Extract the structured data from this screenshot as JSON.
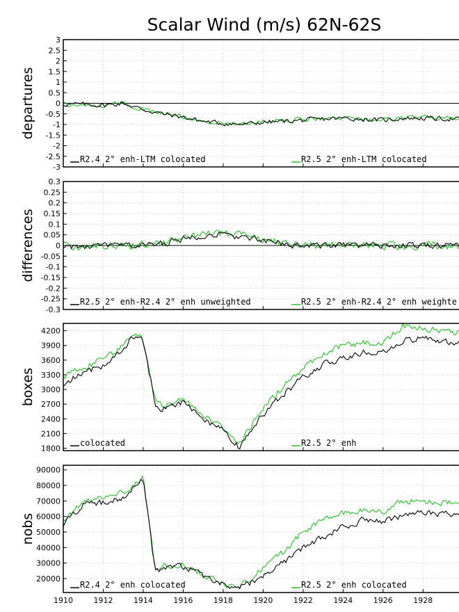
{
  "title": "Scalar Wind (m/s) 62N-62S",
  "colors": {
    "black_series": "#000000",
    "green_series": "#22c322",
    "grid": "#bdbdbd",
    "zero_line": "#000000"
  },
  "x_axis": {
    "start": 1910,
    "end": 1929.8,
    "ticks": [
      1910,
      1912,
      1914,
      1916,
      1918,
      1920,
      1922,
      1924,
      1926,
      1928
    ]
  },
  "chart_data": [
    {
      "type": "line",
      "ylabel": "departures",
      "ylim": [
        -3,
        3
      ],
      "yticks": [
        "3",
        "2.5",
        "2",
        "1.5",
        "1",
        "0.5",
        "0",
        "-0.5",
        "-1",
        "-1.5",
        "-2",
        "-2.5",
        "-3"
      ],
      "zero_line": true,
      "grid": true,
      "legend": [
        {
          "name": "R2.4 2° enh-LTM colocated",
          "color": "#000000",
          "position": "bottom-left"
        },
        {
          "name": "R2.5 2° enh-LTM colocated",
          "color": "#22c322",
          "position": "bottom-right"
        }
      ],
      "shape": {
        "x": [
          1910,
          1911,
          1912,
          1913,
          1914,
          1915,
          1916,
          1917,
          1918,
          1919,
          1920,
          1921,
          1922,
          1923,
          1924,
          1925,
          1926,
          1927,
          1928,
          1929.8
        ],
        "series": [
          {
            "name": "R2.4 2° enh-LTM colocated",
            "values": [
              -0.05,
              -0.05,
              -0.1,
              0.0,
              -0.3,
              -0.5,
              -0.65,
              -0.85,
              -0.95,
              -1.0,
              -0.9,
              -0.85,
              -0.8,
              -0.75,
              -0.7,
              -0.75,
              -0.8,
              -0.7,
              -0.7,
              -0.75
            ]
          },
          {
            "name": "R2.5 2° enh-LTM colocated",
            "values": [
              -0.05,
              -0.05,
              -0.1,
              0.0,
              -0.3,
              -0.5,
              -0.62,
              -0.82,
              -0.93,
              -0.98,
              -0.85,
              -0.8,
              -0.75,
              -0.7,
              -0.68,
              -0.72,
              -0.78,
              -0.68,
              -0.68,
              -0.72
            ]
          }
        ],
        "noise": [
          0.15,
          0.15
        ]
      }
    },
    {
      "type": "line",
      "ylabel": "differences",
      "ylim": [
        -0.3,
        0.3
      ],
      "yticks": [
        "0.3",
        "0.25",
        "0.2",
        "0.15",
        "0.1",
        "0.05",
        "0",
        "-0.05",
        "-0.1",
        "-0.15",
        "-0.2",
        "-0.25",
        "-0.3"
      ],
      "zero_line": true,
      "grid": true,
      "legend": [
        {
          "name": "R2.5 2° enh-R2.4 2° enh unweighted",
          "color": "#000000",
          "position": "bottom-left"
        },
        {
          "name": "R2.5 2° enh-R2.4 2° enh weighte",
          "color": "#22c322",
          "position": "bottom-right"
        }
      ],
      "shape": {
        "x": [
          1910,
          1911,
          1912,
          1913,
          1914,
          1915,
          1916,
          1917,
          1918,
          1919,
          1920,
          1921,
          1922,
          1923,
          1924,
          1925,
          1926,
          1927,
          1928,
          1929.8
        ],
        "series": [
          {
            "name": "R2.5 2° enh-R2.4 2° enh unweighted",
            "values": [
              0.0,
              -0.01,
              0.0,
              0.0,
              0.0,
              0.01,
              0.03,
              0.05,
              0.05,
              0.04,
              0.02,
              0.01,
              0.0,
              0.0,
              0.0,
              0.0,
              0.0,
              0.0,
              0.0,
              0.0
            ]
          },
          {
            "name": "R2.5 2° enh-R2.4 2° enh weighte",
            "values": [
              0.0,
              -0.01,
              0.0,
              0.0,
              0.0,
              0.01,
              0.035,
              0.055,
              0.055,
              0.045,
              0.025,
              0.01,
              0.0,
              0.0,
              0.0,
              0.0,
              0.0,
              0.0,
              0.0,
              0.0
            ]
          }
        ],
        "noise": [
          0.02,
          0.025
        ]
      }
    },
    {
      "type": "line",
      "ylabel": "boxes",
      "ylim": [
        1750,
        4350
      ],
      "yticks": [
        "4200",
        "3900",
        "3600",
        "3300",
        "3000",
        "2700",
        "2400",
        "2100",
        "1800"
      ],
      "ytick_values": [
        4200,
        3900,
        3600,
        3300,
        3000,
        2700,
        2400,
        2100,
        1800
      ],
      "zero_line": false,
      "grid": true,
      "legend": [
        {
          "name": "colocated",
          "color": "#000000",
          "position": "bottom-left"
        },
        {
          "name": "R2.5 2° enh",
          "color": "#22c322",
          "position": "bottom-right"
        }
      ],
      "shape": {
        "x": [
          1910,
          1911,
          1912,
          1913,
          1913.5,
          1914,
          1914.6,
          1915,
          1916,
          1917,
          1918,
          1918.8,
          1919.5,
          1920,
          1921,
          1922,
          1923,
          1924,
          1925,
          1926,
          1927,
          1928,
          1929.8
        ],
        "series": [
          {
            "name": "colocated",
            "values": [
              3100,
              3350,
              3500,
              3800,
              4100,
              4000,
              2700,
              2600,
              2750,
              2400,
              2150,
              1820,
              2200,
              2500,
              2900,
              3250,
              3500,
              3650,
              3750,
              3750,
              4000,
              4050,
              3950
            ]
          },
          {
            "name": "R2.5 2° enh",
            "values": [
              3250,
              3450,
              3600,
              3900,
              4150,
              4050,
              2750,
              2650,
              2800,
              2450,
              2200,
              1880,
              2300,
              2650,
              3050,
              3450,
              3750,
              3900,
              3950,
              3950,
              4300,
              4250,
              4150
            ]
          }
        ],
        "noise": [
          90,
          90
        ]
      }
    },
    {
      "type": "line",
      "ylabel": "nobs",
      "ylim": [
        11000,
        93000
      ],
      "yticks": [
        "90000",
        "80000",
        "70000",
        "60000",
        "50000",
        "40000",
        "30000",
        "20000"
      ],
      "ytick_values": [
        90000,
        80000,
        70000,
        60000,
        50000,
        40000,
        30000,
        20000
      ],
      "zero_line": false,
      "grid": true,
      "legend": [
        {
          "name": "R2.4 2° enh colocated",
          "color": "#000000",
          "position": "bottom-left"
        },
        {
          "name": "R2.5 2° enh colocated",
          "color": "#22c322",
          "position": "bottom-right"
        }
      ],
      "shape": {
        "x": [
          1910,
          1911,
          1912,
          1913,
          1914,
          1914.6,
          1915,
          1916,
          1917,
          1918,
          1918.7,
          1919.5,
          1920,
          1921,
          1922,
          1923,
          1924,
          1925,
          1926,
          1927,
          1928,
          1929.8
        ],
        "series": [
          {
            "name": "R2.4 2° enh colocated",
            "values": [
              55000,
              68000,
              69000,
              72000,
              85000,
              24000,
              27000,
              28000,
              22000,
              16000,
              13000,
              18000,
              22000,
              30000,
              40000,
              47000,
              53000,
              58000,
              56000,
              61000,
              62000,
              61000
            ]
          },
          {
            "name": "R2.5 2° enh colocated",
            "values": [
              57000,
              70000,
              72000,
              75000,
              86000,
              25000,
              28000,
              29000,
              22500,
              16500,
              14000,
              21000,
              27000,
              37000,
              50000,
              58000,
              62000,
              64000,
              63000,
              70000,
              70000,
              68000
            ]
          }
        ],
        "noise": [
          2800,
          2800
        ]
      }
    }
  ]
}
